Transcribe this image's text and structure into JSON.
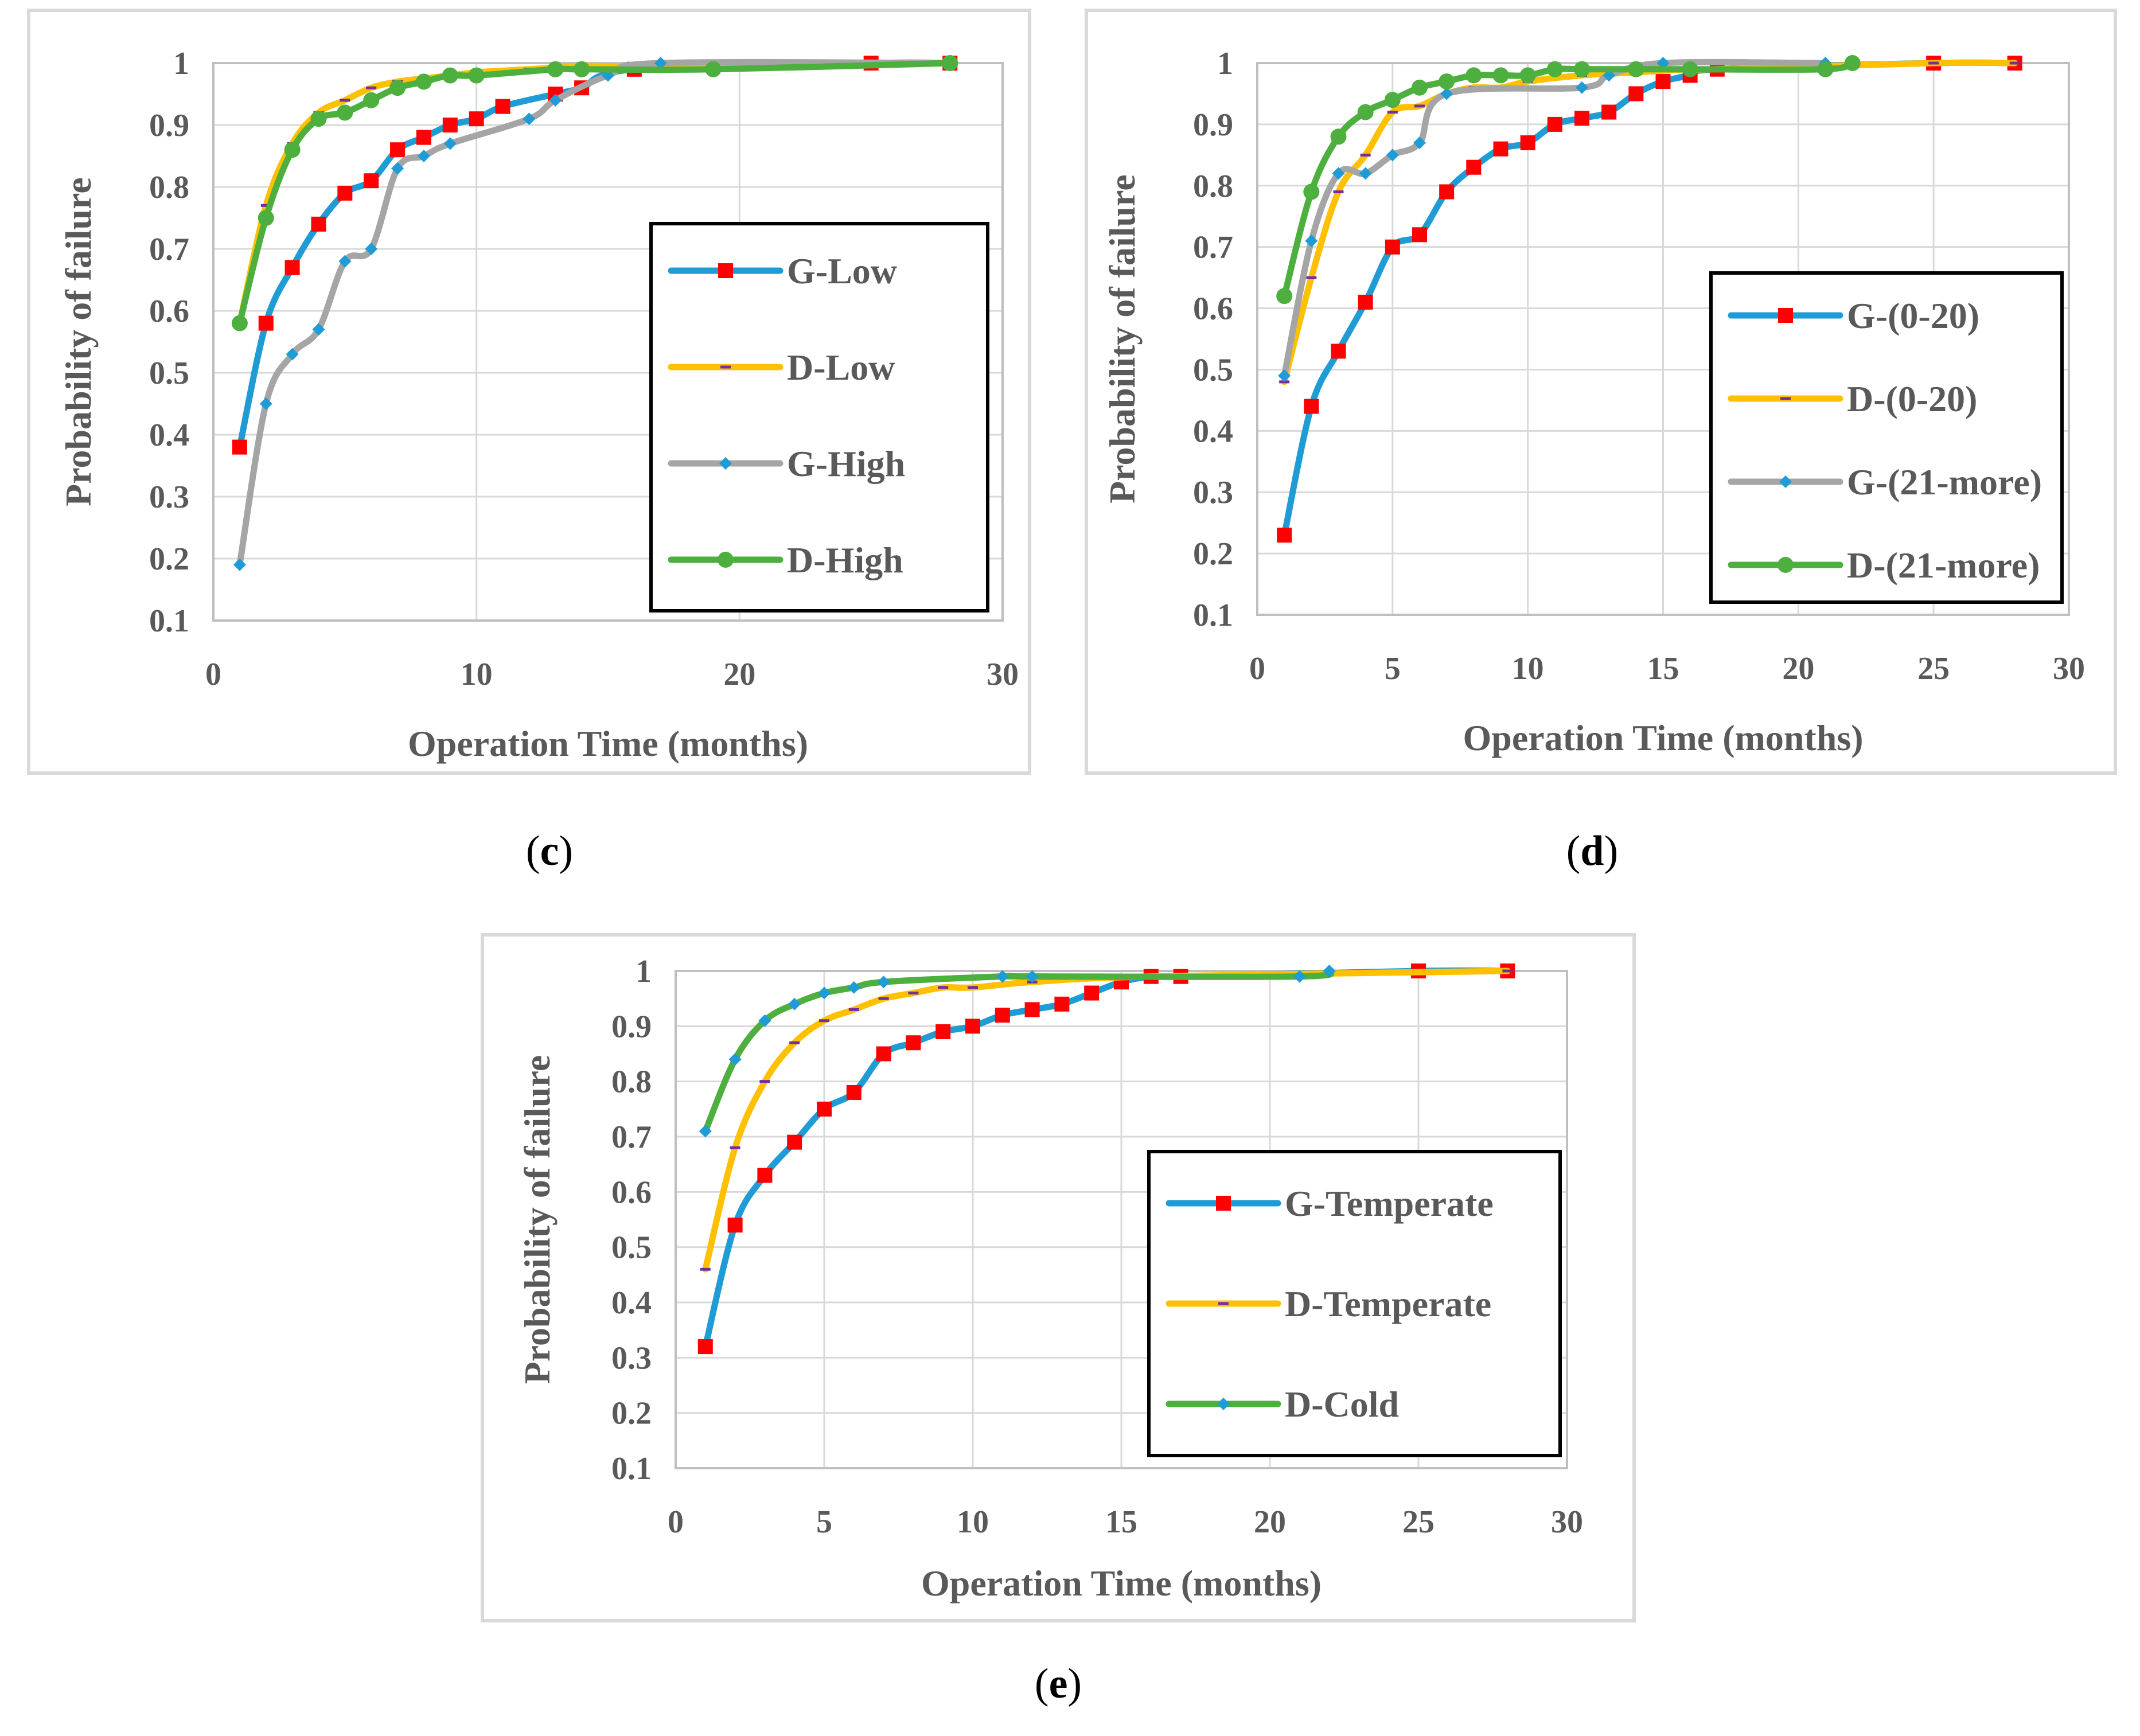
{
  "chart_data": [
    {
      "id": "c",
      "type": "line",
      "caption": {
        "open": "(",
        "letter": "c",
        "close": ")"
      },
      "xlabel": "Operation Time (months)",
      "ylabel": "Probability of failure",
      "xlim": [
        0,
        30
      ],
      "ylim": [
        0.1,
        1
      ],
      "xticks": [
        "0",
        "10",
        "20",
        "30"
      ],
      "yticks": [
        "0.1",
        "0.2",
        "0.3",
        "0.4",
        "0.5",
        "0.6",
        "0.7",
        "0.8",
        "0.9",
        "1"
      ],
      "grid": true,
      "legend_position": "right",
      "series": [
        {
          "name": "G-Low",
          "color": "#1f9cd6",
          "marker": "square",
          "marker_color": "#ff0000",
          "x": [
            1,
            2,
            3,
            4,
            5,
            6,
            7,
            8,
            9,
            10,
            11,
            13,
            14,
            16,
            25,
            28
          ],
          "y": [
            0.38,
            0.58,
            0.67,
            0.74,
            0.79,
            0.81,
            0.86,
            0.88,
            0.9,
            0.91,
            0.93,
            0.95,
            0.96,
            0.99,
            1.0,
            1.0
          ]
        },
        {
          "name": "D-Low",
          "color": "#ffc000",
          "marker": "dash",
          "marker_color": "#7030a0",
          "x": [
            1,
            2,
            3,
            4,
            5,
            6,
            7,
            8,
            9,
            10,
            12,
            14,
            16,
            22,
            25,
            28
          ],
          "y": [
            0.58,
            0.77,
            0.87,
            0.92,
            0.94,
            0.96,
            0.97,
            0.975,
            0.98,
            0.985,
            0.99,
            0.995,
            0.995,
            1.0,
            1.0,
            1.0
          ]
        },
        {
          "name": "G-High",
          "color": "#a5a5a5",
          "marker": "diamond",
          "marker_color": "#1f9cd6",
          "x": [
            1,
            2,
            3,
            4,
            5,
            6,
            7,
            8,
            9,
            12,
            13,
            15,
            17,
            28
          ],
          "y": [
            0.19,
            0.45,
            0.53,
            0.57,
            0.68,
            0.7,
            0.83,
            0.85,
            0.87,
            0.91,
            0.94,
            0.98,
            1.0,
            1.0
          ]
        },
        {
          "name": "D-High",
          "color": "#4caf3e",
          "marker": "circle",
          "marker_color": "#4caf3e",
          "x": [
            1,
            2,
            3,
            4,
            5,
            6,
            7,
            8,
            9,
            10,
            13,
            14,
            19,
            28
          ],
          "y": [
            0.58,
            0.75,
            0.86,
            0.91,
            0.92,
            0.94,
            0.96,
            0.97,
            0.98,
            0.98,
            0.99,
            0.99,
            0.99,
            1.0
          ]
        }
      ]
    },
    {
      "id": "d",
      "type": "line",
      "caption": {
        "open": "(",
        "letter": "d",
        "close": ")"
      },
      "xlabel": "Operation Time (months)",
      "ylabel": "Probability of failure",
      "xlim": [
        0,
        30
      ],
      "ylim": [
        0.1,
        1
      ],
      "xticks": [
        "0",
        "5",
        "10",
        "15",
        "20",
        "25",
        "30"
      ],
      "yticks": [
        "0.1",
        "0.2",
        "0.3",
        "0.4",
        "0.5",
        "0.6",
        "0.7",
        "0.8",
        "0.9",
        "1"
      ],
      "grid": true,
      "legend_position": "right",
      "series": [
        {
          "name": "G-(0-20)",
          "color": "#1f9cd6",
          "marker": "square",
          "marker_color": "#ff0000",
          "x": [
            1,
            2,
            3,
            4,
            5,
            6,
            7,
            8,
            9,
            10,
            11,
            12,
            13,
            14,
            15,
            16,
            17,
            25,
            28
          ],
          "y": [
            0.23,
            0.44,
            0.53,
            0.61,
            0.7,
            0.72,
            0.79,
            0.83,
            0.86,
            0.87,
            0.9,
            0.91,
            0.92,
            0.95,
            0.97,
            0.98,
            0.99,
            1.0,
            1.0
          ]
        },
        {
          "name": "D-(0-20)",
          "color": "#ffc000",
          "marker": "dash",
          "marker_color": "#7030a0",
          "x": [
            1,
            2,
            3,
            4,
            5,
            6,
            7,
            8,
            9,
            10,
            12,
            14,
            16,
            17,
            25,
            28
          ],
          "y": [
            0.48,
            0.65,
            0.79,
            0.85,
            0.92,
            0.93,
            0.95,
            0.96,
            0.96,
            0.97,
            0.98,
            0.985,
            0.99,
            0.99,
            1.0,
            1.0
          ]
        },
        {
          "name": "G-(21-more)",
          "color": "#a5a5a5",
          "marker": "diamond",
          "marker_color": "#1f9cd6",
          "x": [
            1,
            2,
            3,
            4,
            5,
            6,
            7,
            12,
            13,
            15,
            21
          ],
          "y": [
            0.49,
            0.71,
            0.82,
            0.82,
            0.85,
            0.87,
            0.95,
            0.96,
            0.98,
            1.0,
            1.0
          ]
        },
        {
          "name": "D-(21-more)",
          "color": "#4caf3e",
          "marker": "circle",
          "marker_color": "#4caf3e",
          "x": [
            1,
            2,
            3,
            4,
            5,
            6,
            7,
            8,
            9,
            10,
            11,
            12,
            14,
            16,
            21,
            22
          ],
          "y": [
            0.62,
            0.79,
            0.88,
            0.92,
            0.94,
            0.96,
            0.97,
            0.98,
            0.98,
            0.98,
            0.99,
            0.99,
            0.99,
            0.99,
            0.99,
            1.0
          ]
        }
      ]
    },
    {
      "id": "e",
      "type": "line",
      "caption": {
        "open": "(",
        "letter": "e",
        "close": ")"
      },
      "xlabel": "Operation Time (months)",
      "ylabel": "Probability of failure",
      "xlim": [
        0,
        30
      ],
      "ylim": [
        0.1,
        1
      ],
      "xticks": [
        "0",
        "5",
        "10",
        "15",
        "20",
        "25",
        "30"
      ],
      "yticks": [
        "0.1",
        "0.2",
        "0.3",
        "0.4",
        "0.5",
        "0.6",
        "0.7",
        "0.8",
        "0.9",
        "1"
      ],
      "grid": true,
      "legend_position": "right",
      "series": [
        {
          "name": "G-Temperate",
          "color": "#1f9cd6",
          "marker": "square",
          "marker_color": "#ff0000",
          "x": [
            1,
            2,
            3,
            4,
            5,
            6,
            7,
            8,
            9,
            10,
            11,
            12,
            13,
            14,
            15,
            16,
            17,
            25,
            28
          ],
          "y": [
            0.32,
            0.54,
            0.63,
            0.69,
            0.75,
            0.78,
            0.85,
            0.87,
            0.89,
            0.9,
            0.92,
            0.93,
            0.94,
            0.96,
            0.98,
            0.99,
            0.99,
            1.0,
            1.0
          ]
        },
        {
          "name": "D-Temperate",
          "color": "#ffc000",
          "marker": "dash",
          "marker_color": "#7030a0",
          "x": [
            1,
            2,
            3,
            4,
            5,
            6,
            7,
            8,
            9,
            10,
            12,
            16,
            28
          ],
          "y": [
            0.46,
            0.68,
            0.8,
            0.87,
            0.91,
            0.93,
            0.95,
            0.96,
            0.97,
            0.97,
            0.98,
            0.99,
            1.0
          ]
        },
        {
          "name": "D-Cold",
          "color": "#4caf3e",
          "marker": "diamond",
          "marker_color": "#1f9cd6",
          "x": [
            1,
            2,
            3,
            4,
            5,
            6,
            7,
            11,
            12,
            21,
            22
          ],
          "y": [
            0.71,
            0.84,
            0.91,
            0.94,
            0.96,
            0.97,
            0.98,
            0.99,
            0.99,
            0.99,
            1.0
          ]
        }
      ]
    }
  ]
}
